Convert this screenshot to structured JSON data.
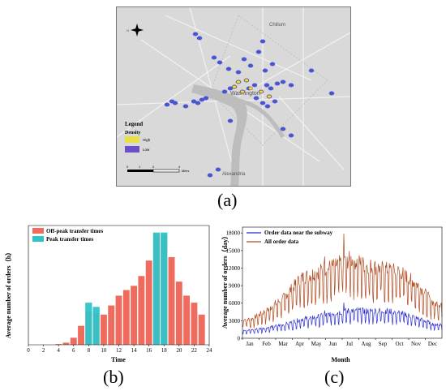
{
  "panels": {
    "a_label": "(a)",
    "b_label": "(b)",
    "c_label": "(c)"
  },
  "map": {
    "place_labels": [
      "Chillum",
      "Washington",
      "Alexandria"
    ],
    "legend_title": "Legend",
    "density_label": "Density",
    "high_label": "High",
    "low_label": "Low",
    "scale_ticks": [
      "0",
      "1",
      "2",
      "4"
    ],
    "scale_unit": "Miles",
    "north_label": "N",
    "colors": {
      "high": "#e8e04a",
      "low": "#6b4fc8",
      "points": "#3355cc"
    }
  },
  "chart_data": [
    {
      "id": "b",
      "type": "bar",
      "xlabel": "Time",
      "ylabel": "Average number of orders（h）",
      "xlim": [
        0,
        24
      ],
      "x_ticks": [
        0,
        2,
        4,
        6,
        8,
        10,
        12,
        14,
        16,
        18,
        20,
        22,
        24
      ],
      "ylim": [
        0,
        170
      ],
      "series": [
        {
          "name": "Off-peak transfer times",
          "color": "#ee6b5e",
          "x": [
            4,
            5,
            6,
            7,
            8,
            9,
            10,
            11,
            12,
            13,
            14,
            15,
            16,
            17,
            18,
            19,
            20,
            21,
            22,
            23
          ],
          "values": [
            1,
            3,
            10,
            27,
            48,
            45,
            43,
            56,
            70,
            78,
            84,
            98,
            120,
            158,
            156,
            125,
            90,
            70,
            60,
            43
          ]
        },
        {
          "name": "Peak transfer times",
          "color": "#2fc4c8",
          "x": [
            8,
            9,
            17,
            18
          ],
          "values": [
            60,
            54,
            160,
            160
          ]
        }
      ],
      "legend": "top-left"
    },
    {
      "id": "c",
      "type": "line",
      "xlabel": "Month",
      "ylabel": "Average number of orders（day）",
      "x_categories": [
        "Jan",
        "Feb",
        "Mar",
        "Apr",
        "May",
        "Jun",
        "Jul",
        "Aug",
        "Sep",
        "Oct",
        "Nov",
        "Dec"
      ],
      "ylim": [
        0,
        19000
      ],
      "y_ticks": [
        0,
        3000,
        6000,
        9000,
        12000,
        15000,
        18000
      ],
      "series": [
        {
          "name": "Order data near the subway",
          "color": "#2f2fd0",
          "monthly_baseline": [
            1300,
            1700,
            2200,
            3000,
            3400,
            4000,
            4400,
            4300,
            4400,
            4000,
            3200,
            2200
          ],
          "peak": 6100
        },
        {
          "name": "All order data",
          "color": "#b04a20",
          "monthly_baseline": [
            3000,
            4500,
            6500,
            9500,
            10500,
            11500,
            12500,
            11500,
            11000,
            10500,
            8500,
            5500
          ],
          "peak": 17900
        }
      ],
      "legend": "top-left"
    }
  ]
}
